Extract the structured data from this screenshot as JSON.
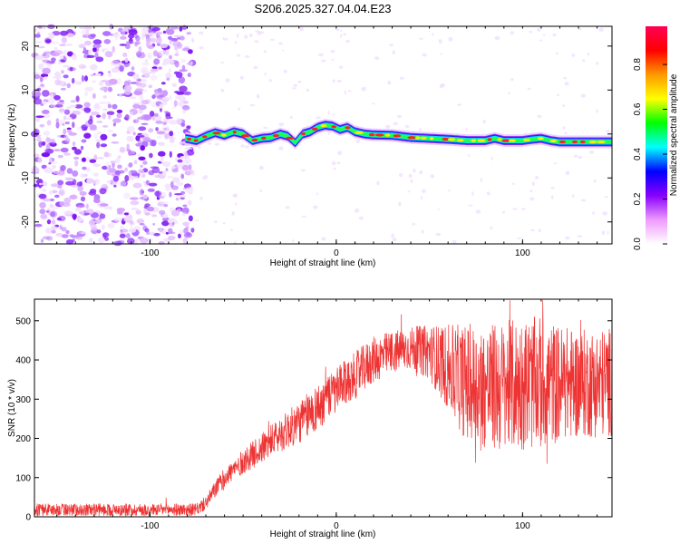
{
  "title": "S206.2025.327.04.04.E23",
  "chart_data": [
    {
      "type": "heatmap",
      "name": "spectrogram",
      "xlabel": "Height of straight line (km)",
      "ylabel": "Frequency (Hz)",
      "xlim": [
        -162,
        148
      ],
      "ylim": [
        -25,
        24.5
      ],
      "xticks": [
        -100,
        0,
        100
      ],
      "yticks": [
        -20,
        -10,
        0,
        10,
        20
      ],
      "noise_region_x": [
        -162,
        -79
      ],
      "signal_track": {
        "x": [
          -81,
          -75,
          -70,
          -65,
          -60,
          -55,
          -50,
          -45,
          -40,
          -35,
          -30,
          -26,
          -22,
          -18,
          -14,
          -10,
          -6,
          -2,
          2,
          6,
          10,
          15,
          20,
          30,
          40,
          50,
          60,
          70,
          80,
          85,
          90,
          95,
          100,
          105,
          110,
          115,
          120,
          130,
          140,
          148
        ],
        "y": [
          -1.0,
          -1.5,
          -0.5,
          0.3,
          -0.3,
          0.5,
          0.0,
          -1.5,
          -1.0,
          -0.8,
          0.0,
          -0.5,
          -2.0,
          0.0,
          0.5,
          1.5,
          2.0,
          1.8,
          1.0,
          1.5,
          0.5,
          0.0,
          -0.2,
          -0.3,
          -0.8,
          -1.0,
          -1.2,
          -1.5,
          -1.5,
          -1.0,
          -1.5,
          -1.5,
          -1.5,
          -1.2,
          -1.0,
          -1.5,
          -1.8,
          -1.8,
          -1.8,
          -1.8
        ]
      }
    },
    {
      "type": "line",
      "name": "snr",
      "xlabel": "Height of straight line (km)",
      "ylabel": "SNR (10 * v/v)",
      "xlim": [
        -162,
        148
      ],
      "ylim": [
        0,
        555
      ],
      "xticks": [
        -100,
        0,
        100
      ],
      "yticks": [
        0,
        100,
        200,
        300,
        400,
        500
      ],
      "series_color": "#ee3333",
      "envelope": {
        "x": [
          -162,
          -100,
          -75,
          -70,
          -65,
          -60,
          -55,
          -50,
          -40,
          -30,
          -20,
          -10,
          0,
          10,
          20,
          30,
          40,
          50,
          60,
          70,
          80,
          90,
          100,
          110,
          120,
          130,
          140,
          148
        ],
        "mean": [
          18,
          18,
          18,
          35,
          70,
          100,
          120,
          140,
          175,
          210,
          240,
          280,
          320,
          360,
          400,
          420,
          430,
          420,
          380,
          340,
          330,
          330,
          340,
          340,
          340,
          340,
          340,
          345
        ],
        "spread": [
          16,
          16,
          16,
          18,
          22,
          25,
          28,
          32,
          38,
          45,
          55,
          60,
          60,
          60,
          60,
          55,
          55,
          70,
          110,
          150,
          160,
          170,
          170,
          170,
          150,
          140,
          140,
          140
        ]
      }
    }
  ],
  "colorbar": {
    "label": "Normalized spectral amplitude",
    "ticks": [
      0.0,
      0.2,
      0.4,
      0.6,
      0.8
    ],
    "range": [
      0,
      0.97
    ],
    "colors": [
      "#ffffff",
      "#ee99ff",
      "#8800ff",
      "#0000ff",
      "#00ffff",
      "#00ff00",
      "#ffff00",
      "#ff9900",
      "#ff0000",
      "#ff0055"
    ]
  }
}
